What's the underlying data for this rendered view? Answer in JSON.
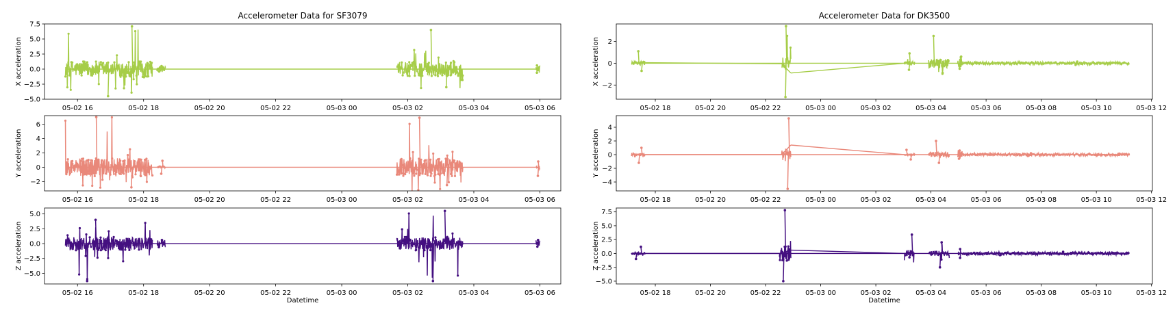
{
  "chart_data": [
    {
      "type": "line",
      "title": "Accelerometer Data for SF3079",
      "xlabel": "Datetime",
      "x_ticks": [
        "05-02 16",
        "05-02 18",
        "05-02 20",
        "05-02 22",
        "05-03 00",
        "05-03 02",
        "05-03 04",
        "05-03 06"
      ],
      "xlim": [
        "2023-05-02 15:00",
        "2023-05-03 06:38"
      ],
      "panels": [
        {
          "ylabel": "X acceleration",
          "color": "#a6cd48",
          "ylim": [
            -5.0,
            7.5
          ],
          "y_ticks": [
            -5.0,
            -2.5,
            0.0,
            2.5,
            5.0,
            7.5
          ],
          "bursts": [
            {
              "start": "2023-05-02 15:38",
              "end": "2023-05-02 18:16",
              "min": -4.5,
              "max": 7.1
            },
            {
              "start": "2023-05-02 18:24",
              "end": "2023-05-02 18:40",
              "min": -0.4,
              "max": 0.5
            },
            {
              "start": "2023-05-03 01:40",
              "end": "2023-05-03 03:40",
              "min": -3.0,
              "max": 6.5
            },
            {
              "start": "2023-05-03 05:53",
              "end": "2023-05-03 06:00",
              "min": -0.6,
              "max": 0.6
            }
          ]
        },
        {
          "ylabel": "Y acceleration",
          "color": "#e9887a",
          "ylim": [
            -3.3,
            7.2
          ],
          "y_ticks": [
            -2,
            0,
            2,
            4,
            6
          ],
          "bursts": [
            {
              "start": "2023-05-02 15:38",
              "end": "2023-05-02 18:16",
              "min": -2.8,
              "max": 7.0
            },
            {
              "start": "2023-05-02 18:24",
              "end": "2023-05-02 18:40",
              "min": -0.9,
              "max": 0.9
            },
            {
              "start": "2023-05-03 01:40",
              "end": "2023-05-03 03:40",
              "min": -2.5,
              "max": 6.9
            },
            {
              "start": "2023-05-03 05:53",
              "end": "2023-05-03 06:00",
              "min": -1.2,
              "max": 0.8
            }
          ]
        },
        {
          "ylabel": "Z acceleration",
          "color": "#440f80",
          "ylim": [
            -6.8,
            6.0
          ],
          "y_ticks": [
            -5.0,
            -2.5,
            0.0,
            2.5,
            5.0
          ],
          "bursts": [
            {
              "start": "2023-05-02 15:38",
              "end": "2023-05-02 18:16",
              "min": -6.3,
              "max": 4.0
            },
            {
              "start": "2023-05-02 18:24",
              "end": "2023-05-02 18:40",
              "min": -0.6,
              "max": 0.6
            },
            {
              "start": "2023-05-03 01:40",
              "end": "2023-05-03 03:40",
              "min": -6.3,
              "max": 5.5
            },
            {
              "start": "2023-05-03 05:53",
              "end": "2023-05-03 06:00",
              "min": -0.5,
              "max": 0.6
            }
          ]
        }
      ]
    },
    {
      "type": "line",
      "title": "Accelerometer Data for DK3500",
      "xlabel": "Datetime",
      "x_ticks": [
        "05-02 18",
        "05-02 20",
        "05-02 22",
        "05-03 00",
        "05-03 02",
        "05-03 04",
        "05-03 06",
        "05-03 08",
        "05-03 10",
        "05-03 12"
      ],
      "xlim": [
        "2023-05-02 16:35",
        "2023-05-03 12:02"
      ],
      "panels": [
        {
          "ylabel": "X acceleration",
          "color": "#a6cd48",
          "ylim": [
            -3.3,
            3.6
          ],
          "y_ticks": [
            -2,
            0,
            2
          ],
          "bursts": [
            {
              "start": "2023-05-02 17:08",
              "end": "2023-05-02 17:38",
              "min": -0.7,
              "max": 1.1
            },
            {
              "start": "2023-05-02 22:35",
              "end": "2023-05-02 22:55",
              "min": -3.1,
              "max": 3.4
            },
            {
              "start": "2023-05-03 03:02",
              "end": "2023-05-03 03:25",
              "min": -0.6,
              "max": 0.9
            },
            {
              "start": "2023-05-03 03:55",
              "end": "2023-05-03 04:40",
              "min": -0.9,
              "max": 2.5
            },
            {
              "start": "2023-05-03 04:58",
              "end": "2023-05-03 05:08",
              "min": -0.5,
              "max": 0.6
            },
            {
              "start": "2023-05-03 05:08",
              "end": "2023-05-03 11:12",
              "min": -0.15,
              "max": 0.15
            }
          ],
          "connectors": [
            {
              "t": "2023-05-02 17:38",
              "v": 0.05
            },
            {
              "t": "2023-05-02 22:35",
              "v": -0.05
            },
            {
              "t": "2023-05-02 22:55",
              "v": -0.9
            },
            {
              "t": "2023-05-03 03:02",
              "v": 0.0
            }
          ]
        },
        {
          "ylabel": "Y acceleration",
          "color": "#e9887a",
          "ylim": [
            -5.3,
            5.7
          ],
          "y_ticks": [
            -4,
            -2,
            0,
            2,
            4
          ],
          "bursts": [
            {
              "start": "2023-05-02 17:08",
              "end": "2023-05-02 17:38",
              "min": -1.2,
              "max": 1.0
            },
            {
              "start": "2023-05-02 22:35",
              "end": "2023-05-02 22:55",
              "min": -5.0,
              "max": 5.3
            },
            {
              "start": "2023-05-03 03:02",
              "end": "2023-05-03 03:25",
              "min": -0.7,
              "max": 0.7
            },
            {
              "start": "2023-05-03 03:55",
              "end": "2023-05-03 04:40",
              "min": -1.2,
              "max": 2.0
            },
            {
              "start": "2023-05-03 04:58",
              "end": "2023-05-03 05:08",
              "min": -0.6,
              "max": 0.6
            },
            {
              "start": "2023-05-03 05:08",
              "end": "2023-05-03 11:12",
              "min": -0.2,
              "max": 0.2
            }
          ],
          "connectors": [
            {
              "t": "2023-05-02 17:38",
              "v": 0.0
            },
            {
              "t": "2023-05-02 22:35",
              "v": 0.0
            },
            {
              "t": "2023-05-02 22:55",
              "v": 1.4
            },
            {
              "t": "2023-05-03 03:02",
              "v": 0.0
            }
          ]
        },
        {
          "ylabel": "Z acceleration",
          "color": "#440f80",
          "ylim": [
            -5.5,
            8.2
          ],
          "y_ticks": [
            -5.0,
            -2.5,
            0.0,
            2.5,
            5.0,
            7.5
          ],
          "bursts": [
            {
              "start": "2023-05-02 17:08",
              "end": "2023-05-02 17:38",
              "min": -1.0,
              "max": 1.2
            },
            {
              "start": "2023-05-02 22:30",
              "end": "2023-05-02 22:55",
              "min": -5.0,
              "max": 7.8
            },
            {
              "start": "2023-05-03 03:02",
              "end": "2023-05-03 03:25",
              "min": -0.7,
              "max": 3.4
            },
            {
              "start": "2023-05-03 03:55",
              "end": "2023-05-03 04:40",
              "min": -2.5,
              "max": 2.0
            },
            {
              "start": "2023-05-03 04:58",
              "end": "2023-05-03 05:08",
              "min": -0.8,
              "max": 0.8
            },
            {
              "start": "2023-05-03 05:08",
              "end": "2023-05-03 11:12",
              "min": -0.3,
              "max": 0.3
            }
          ],
          "connectors": [
            {
              "t": "2023-05-02 17:38",
              "v": 0.0
            },
            {
              "t": "2023-05-02 22:30",
              "v": 0.0
            },
            {
              "t": "2023-05-02 22:55",
              "v": 0.6
            },
            {
              "t": "2023-05-03 03:02",
              "v": 0.0
            }
          ]
        }
      ]
    }
  ]
}
